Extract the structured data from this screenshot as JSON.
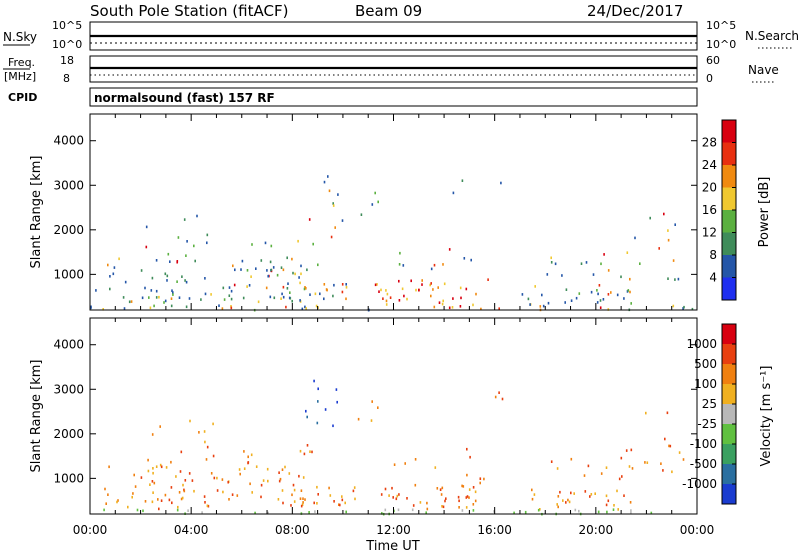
{
  "header": {
    "station": "South Pole Station (fitACF)",
    "beam": "Beam 09",
    "date": "24/Dec/2017"
  },
  "strip_labels": {
    "nsky": "N.Sky",
    "nsky_hi": "10^5",
    "nsky_lo": "10^0",
    "nsearch": "N.Search",
    "nsearch_hi": "10^5",
    "nsearch_lo": "10^0",
    "freq": "Freq.",
    "freq_unit": "[MHz]",
    "freq_hi": "18",
    "freq_lo": "8",
    "nave": "Nave",
    "nave_hi": "60",
    "nave_lo": "0",
    "cpid": "CPID",
    "cpid_value": "normalsound (fast) 157 RF"
  },
  "chart_data": [
    {
      "type": "heatmap",
      "name": "power-panel",
      "ylabel": "Slant Range [km]",
      "ylim": [
        200,
        4600
      ],
      "xlim_hours": [
        0,
        24
      ],
      "yticks": [
        "1000",
        "2000",
        "3000",
        "4000"
      ],
      "colorbar": {
        "label": "Power [dB]",
        "ticks": [
          "4",
          "8",
          "12",
          "16",
          "20",
          "24",
          "28"
        ],
        "colors": [
          "#1f2ff0",
          "#2456a8",
          "#3f8c5a",
          "#5bb040",
          "#f0c830",
          "#f08a10",
          "#e83010",
          "#d80010"
        ]
      }
    },
    {
      "type": "heatmap",
      "name": "velocity-panel",
      "ylabel": "Slant Range [km]",
      "ylim": [
        200,
        4600
      ],
      "xlim_hours": [
        0,
        24
      ],
      "yticks": [
        "1000",
        "2000",
        "3000",
        "4000"
      ],
      "xticks": [
        "00:00",
        "04:00",
        "08:00",
        "12:00",
        "16:00",
        "20:00",
        "00:00"
      ],
      "xlabel": "Time UT",
      "colorbar": {
        "label": "Velocity [m s⁻¹]",
        "ticks": [
          "1000",
          "500",
          "100",
          "25",
          "-25",
          "-100",
          "-500",
          "-1000"
        ],
        "colors": [
          "#1a3cd0",
          "#2a6fa0",
          "#3aa060",
          "#60c040",
          "#b8b8b8",
          "#f0b020",
          "#f08010",
          "#e84010",
          "#d80010"
        ]
      }
    }
  ]
}
